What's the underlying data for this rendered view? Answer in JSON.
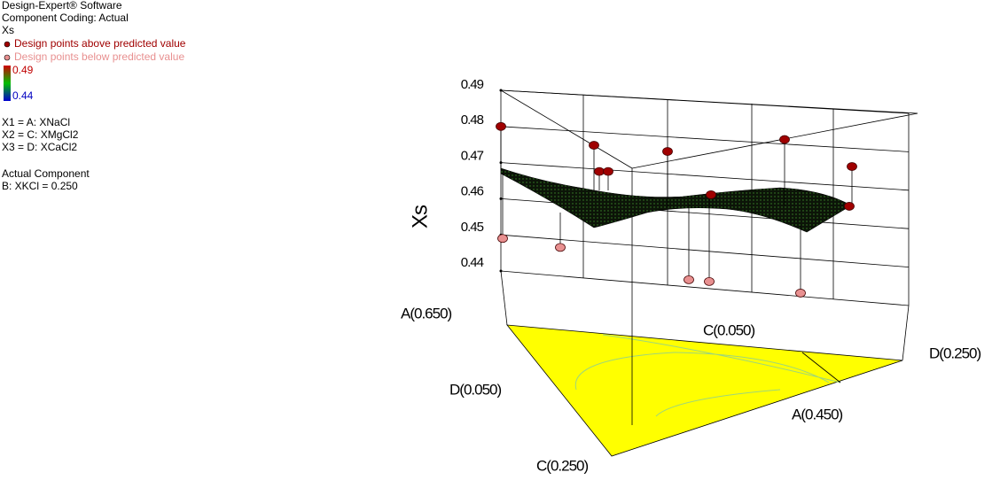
{
  "chart_data": {
    "type": "surface3d",
    "info": [
      "Design-Expert® Software",
      "Component Coding: Actual"
    ],
    "response": "Xs",
    "series": [
      {
        "name": "Design points above predicted value",
        "color": "#a00000",
        "values": [
          0.48,
          0.477,
          0.47,
          0.47,
          0.477,
          0.466,
          0.483,
          0.477,
          0.466
        ]
      },
      {
        "name": "Design points below predicted value",
        "color": "#e89090",
        "values": [
          0.449,
          0.448,
          0.442,
          0.442,
          0.441
        ]
      }
    ],
    "color_ticks": [
      0.44,
      0.49
    ],
    "factors": [
      "X1 = A: XNaCl",
      "X2 = C: XMgCl2",
      "X3 = D: XCaCl2"
    ],
    "actual_component_title": "Actual Component",
    "actual_component": "B: XKCl = 0.250",
    "zlabel": "Xs",
    "zlim": [
      0.44,
      0.49
    ],
    "zticks": [
      0.44,
      0.45,
      0.46,
      0.47,
      0.48,
      0.49
    ],
    "corner_labels": [
      "A(0.650)",
      "D(0.050)",
      "C(0.250)",
      "A(0.450)",
      "D(0.250)",
      "C(0.050)"
    ]
  }
}
